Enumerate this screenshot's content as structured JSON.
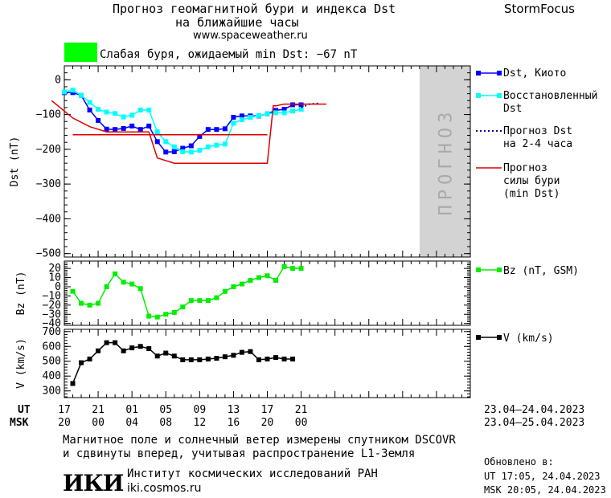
{
  "header": {
    "title_line1": "Прогноз геомагнитной бури и индекса Dst",
    "title_line2": "на ближайшие часы",
    "url": "www.spaceweather.ru",
    "brand": "StormFocus"
  },
  "storm_status": {
    "text": "Слабая буря, ожидаемый min Dst: −67 nT",
    "color": "#00ff00"
  },
  "colors": {
    "dst": "#0000ff",
    "restored": "#00ffff",
    "forecast": "#0000aa",
    "storm": "#dd0000",
    "bz": "#00ee00",
    "v": "#000000",
    "forecast_zone": "#d3d3d3"
  },
  "chart_data": [
    {
      "type": "line",
      "name": "dst-panel",
      "ylabel": "Dst (nT)",
      "ylim": [
        -510,
        40
      ],
      "yticks": [
        0,
        -100,
        -200,
        -300,
        -400,
        -500
      ],
      "xlim": [
        17,
        65
      ],
      "forecast_zone": {
        "from": 59,
        "to": 65,
        "label": "ПРОГНОЗ"
      },
      "series": [
        {
          "name": "Dst, Киото",
          "color": "#0000ff",
          "markers": true,
          "x": [
            17,
            18,
            19,
            20,
            21,
            22,
            23,
            24,
            25,
            26,
            27,
            28,
            29,
            30,
            31,
            32,
            33,
            34,
            35,
            36,
            37,
            38,
            39,
            40,
            41,
            42,
            43,
            44,
            45
          ],
          "y": [
            -37,
            -37,
            -45,
            -87,
            -117,
            -142,
            -143,
            -140,
            -133,
            -143,
            -133,
            -178,
            -208,
            -207,
            -197,
            -190,
            -163,
            -143,
            -143,
            -141,
            -108,
            -104,
            -104,
            -104,
            -98,
            -88,
            -85,
            -72,
            -72
          ]
        },
        {
          "name": "Восстановленный Dst",
          "color": "#00ffff",
          "markers": true,
          "x": [
            17,
            18,
            19,
            20,
            21,
            22,
            23,
            24,
            25,
            26,
            27,
            28,
            29,
            30,
            31,
            32,
            33,
            34,
            35,
            36,
            37,
            38,
            39,
            40,
            41,
            42,
            43,
            44,
            45
          ],
          "y": [
            -35,
            -30,
            -45,
            -65,
            -85,
            -93,
            -97,
            -107,
            -102,
            -87,
            -87,
            -150,
            -178,
            -193,
            -207,
            -208,
            -203,
            -193,
            -188,
            -185,
            -125,
            -115,
            -108,
            -103,
            -98,
            -95,
            -95,
            -90,
            -85
          ]
        },
        {
          "name": "Прогноз Dst на 2-4 часа",
          "color": "#0000aa",
          "dotted": true,
          "x": [
            45,
            46,
            47
          ],
          "y": [
            -80,
            -70,
            -68
          ]
        },
        {
          "name": "Прогноз силы бури (min Dst)",
          "color": "#dd0000",
          "markers": false,
          "x": [
            15.5,
            18,
            20,
            22,
            24,
            26,
            27,
            28,
            30,
            32,
            34,
            36,
            38,
            40,
            41,
            41.7,
            42,
            43,
            45,
            48
          ],
          "y": [
            -60,
            -110,
            -135,
            -150,
            -150,
            -150,
            -150,
            -225,
            -240,
            -240,
            -240,
            -240,
            -240,
            -240,
            -240,
            -75,
            -75,
            -70,
            -70,
            -70
          ]
        },
        {
          "name": "",
          "color": "#dd0000",
          "markers": false,
          "x": [
            18,
            41
          ],
          "y": [
            -158,
            -158
          ]
        }
      ]
    },
    {
      "type": "line",
      "name": "bz-panel",
      "ylabel": "Bz (nT)",
      "ylim": [
        -42,
        28
      ],
      "yticks": [
        20,
        10,
        0,
        -10,
        -20,
        -30,
        -40
      ],
      "xlim": [
        17,
        65
      ],
      "series": [
        {
          "name": "Bz (nT, GSM)",
          "color": "#00ee00",
          "markers": true,
          "x": [
            18,
            19,
            20,
            21,
            22,
            23,
            24,
            25,
            26,
            27,
            28,
            29,
            30,
            31,
            32,
            33,
            34,
            35,
            36,
            37,
            38,
            39,
            40,
            41,
            42,
            43,
            44,
            45
          ],
          "y": [
            -5,
            -18,
            -20,
            -18,
            0,
            14,
            5,
            3,
            -2,
            -32,
            -33,
            -30,
            -28,
            -22,
            -15,
            -15,
            -15,
            -12,
            -5,
            0,
            3,
            7,
            10,
            12,
            7,
            22,
            20,
            20
          ]
        }
      ]
    },
    {
      "type": "line",
      "name": "v-panel",
      "ylabel": "V (km/s)",
      "ylim": [
        255,
        715
      ],
      "yticks": [
        700,
        600,
        500,
        400,
        300
      ],
      "xlim": [
        17,
        65
      ],
      "series": [
        {
          "name": "V (km/s)",
          "color": "#000000",
          "markers": true,
          "x": [
            18,
            19,
            20,
            21,
            22,
            23,
            24,
            25,
            26,
            27,
            28,
            29,
            30,
            31,
            32,
            33,
            34,
            35,
            36,
            37,
            38,
            39,
            40,
            41,
            42,
            43,
            44
          ],
          "y": [
            350,
            490,
            515,
            570,
            625,
            625,
            570,
            590,
            600,
            585,
            535,
            555,
            535,
            510,
            510,
            510,
            515,
            520,
            530,
            540,
            560,
            565,
            510,
            515,
            525,
            515,
            515
          ]
        }
      ]
    }
  ],
  "x_axis": {
    "ut_label": "UT",
    "msk_label": "MSK",
    "ticks": [
      {
        "x": 17,
        "ut": "17",
        "msk": "20"
      },
      {
        "x": 21,
        "ut": "21",
        "msk": "00"
      },
      {
        "x": 25,
        "ut": "01",
        "msk": "04"
      },
      {
        "x": 29,
        "ut": "05",
        "msk": "08"
      },
      {
        "x": 33,
        "ut": "09",
        "msk": "12"
      },
      {
        "x": 37,
        "ut": "13",
        "msk": "16"
      },
      {
        "x": 41,
        "ut": "17",
        "msk": "20"
      },
      {
        "x": 45,
        "ut": "21",
        "msk": "00"
      }
    ],
    "ut_dates": "23.04–24.04.2023",
    "msk_dates": "23.04–25.04.2023"
  },
  "legend": {
    "dst": "Dst, Киото",
    "restored_l1": "Восстановленный",
    "restored_l2": "Dst",
    "forecast_l1": "Прогноз Dst",
    "forecast_l2": "на 2-4 часа",
    "storm_l1": "Прогноз",
    "storm_l2": "силы бури",
    "storm_l3": "(min Dst)",
    "bz": "Bz (nT, GSM)",
    "v": "V (km/s)"
  },
  "footer": {
    "note_line1": "Магнитное поле и солнечный ветер измерены спутником DSCOVR",
    "note_line2": "и сдвинуты вперед, учитывая распространение L1-Земля",
    "logo": "ИКИ",
    "institute": "Институт космических исследований РАН",
    "institute_url": "iki.cosmos.ru",
    "updated_label": "Обновлено в:",
    "updated_ut": "UT  17:05, 24.04.2023",
    "updated_msk": "MSK 20:05, 24.04.2023"
  }
}
